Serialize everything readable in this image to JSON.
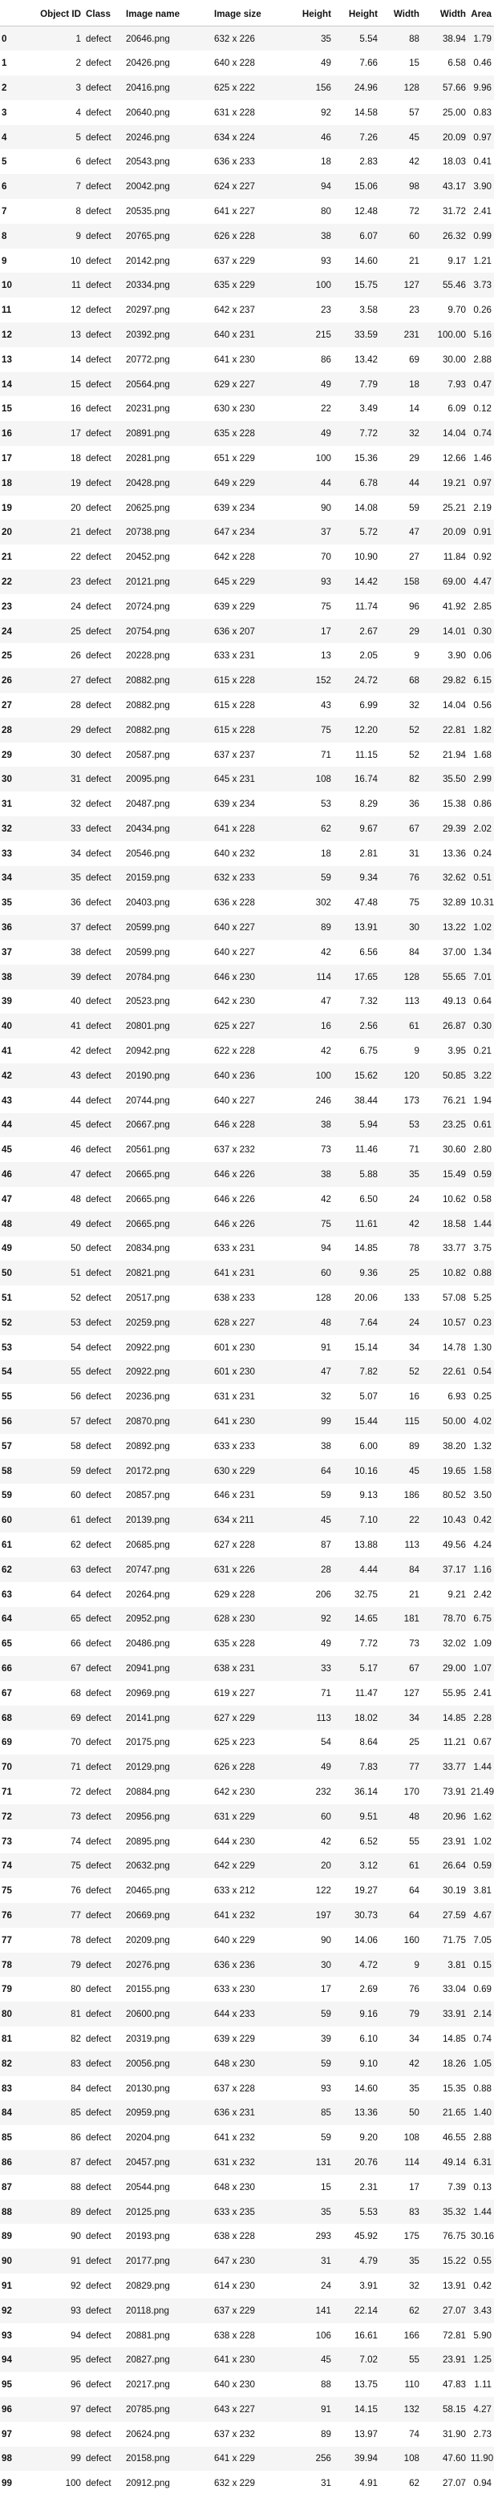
{
  "table": {
    "columns": [
      "",
      "Object ID",
      "Class",
      "Image name",
      "Image size",
      "Height",
      "Height",
      "Width",
      "Width",
      "Area"
    ],
    "rows": [
      [
        "0",
        "1",
        "defect",
        "20646.png",
        "632 x 226",
        "35",
        "5.54",
        "88",
        "38.94",
        "1.79"
      ],
      [
        "1",
        "2",
        "defect",
        "20426.png",
        "640 x 228",
        "49",
        "7.66",
        "15",
        "6.58",
        "0.46"
      ],
      [
        "2",
        "3",
        "defect",
        "20416.png",
        "625 x 222",
        "156",
        "24.96",
        "128",
        "57.66",
        "9.96"
      ],
      [
        "3",
        "4",
        "defect",
        "20640.png",
        "631 x 228",
        "92",
        "14.58",
        "57",
        "25.00",
        "0.83"
      ],
      [
        "4",
        "5",
        "defect",
        "20246.png",
        "634 x 224",
        "46",
        "7.26",
        "45",
        "20.09",
        "0.97"
      ],
      [
        "5",
        "6",
        "defect",
        "20543.png",
        "636 x 233",
        "18",
        "2.83",
        "42",
        "18.03",
        "0.41"
      ],
      [
        "6",
        "7",
        "defect",
        "20042.png",
        "624 x 227",
        "94",
        "15.06",
        "98",
        "43.17",
        "3.90"
      ],
      [
        "7",
        "8",
        "defect",
        "20535.png",
        "641 x 227",
        "80",
        "12.48",
        "72",
        "31.72",
        "2.41"
      ],
      [
        "8",
        "9",
        "defect",
        "20765.png",
        "626 x 228",
        "38",
        "6.07",
        "60",
        "26.32",
        "0.99"
      ],
      [
        "9",
        "10",
        "defect",
        "20142.png",
        "637 x 229",
        "93",
        "14.60",
        "21",
        "9.17",
        "1.21"
      ],
      [
        "10",
        "11",
        "defect",
        "20334.png",
        "635 x 229",
        "100",
        "15.75",
        "127",
        "55.46",
        "3.73"
      ],
      [
        "11",
        "12",
        "defect",
        "20297.png",
        "642 x 237",
        "23",
        "3.58",
        "23",
        "9.70",
        "0.26"
      ],
      [
        "12",
        "13",
        "defect",
        "20392.png",
        "640 x 231",
        "215",
        "33.59",
        "231",
        "100.00",
        "5.16"
      ],
      [
        "13",
        "14",
        "defect",
        "20772.png",
        "641 x 230",
        "86",
        "13.42",
        "69",
        "30.00",
        "2.88"
      ],
      [
        "14",
        "15",
        "defect",
        "20564.png",
        "629 x 227",
        "49",
        "7.79",
        "18",
        "7.93",
        "0.47"
      ],
      [
        "15",
        "16",
        "defect",
        "20231.png",
        "630 x 230",
        "22",
        "3.49",
        "14",
        "6.09",
        "0.12"
      ],
      [
        "16",
        "17",
        "defect",
        "20891.png",
        "635 x 228",
        "49",
        "7.72",
        "32",
        "14.04",
        "0.74"
      ],
      [
        "17",
        "18",
        "defect",
        "20281.png",
        "651 x 229",
        "100",
        "15.36",
        "29",
        "12.66",
        "1.46"
      ],
      [
        "18",
        "19",
        "defect",
        "20428.png",
        "649 x 229",
        "44",
        "6.78",
        "44",
        "19.21",
        "0.97"
      ],
      [
        "19",
        "20",
        "defect",
        "20625.png",
        "639 x 234",
        "90",
        "14.08",
        "59",
        "25.21",
        "2.19"
      ],
      [
        "20",
        "21",
        "defect",
        "20738.png",
        "647 x 234",
        "37",
        "5.72",
        "47",
        "20.09",
        "0.91"
      ],
      [
        "21",
        "22",
        "defect",
        "20452.png",
        "642 x 228",
        "70",
        "10.90",
        "27",
        "11.84",
        "0.92"
      ],
      [
        "22",
        "23",
        "defect",
        "20121.png",
        "645 x 229",
        "93",
        "14.42",
        "158",
        "69.00",
        "4.47"
      ],
      [
        "23",
        "24",
        "defect",
        "20724.png",
        "639 x 229",
        "75",
        "11.74",
        "96",
        "41.92",
        "2.85"
      ],
      [
        "24",
        "25",
        "defect",
        "20754.png",
        "636 x 207",
        "17",
        "2.67",
        "29",
        "14.01",
        "0.30"
      ],
      [
        "25",
        "26",
        "defect",
        "20228.png",
        "633 x 231",
        "13",
        "2.05",
        "9",
        "3.90",
        "0.06"
      ],
      [
        "26",
        "27",
        "defect",
        "20882.png",
        "615 x 228",
        "152",
        "24.72",
        "68",
        "29.82",
        "6.15"
      ],
      [
        "27",
        "28",
        "defect",
        "20882.png",
        "615 x 228",
        "43",
        "6.99",
        "32",
        "14.04",
        "0.56"
      ],
      [
        "28",
        "29",
        "defect",
        "20882.png",
        "615 x 228",
        "75",
        "12.20",
        "52",
        "22.81",
        "1.82"
      ],
      [
        "29",
        "30",
        "defect",
        "20587.png",
        "637 x 237",
        "71",
        "11.15",
        "52",
        "21.94",
        "1.68"
      ],
      [
        "30",
        "31",
        "defect",
        "20095.png",
        "645 x 231",
        "108",
        "16.74",
        "82",
        "35.50",
        "2.99"
      ],
      [
        "31",
        "32",
        "defect",
        "20487.png",
        "639 x 234",
        "53",
        "8.29",
        "36",
        "15.38",
        "0.86"
      ],
      [
        "32",
        "33",
        "defect",
        "20434.png",
        "641 x 228",
        "62",
        "9.67",
        "67",
        "29.39",
        "2.02"
      ],
      [
        "33",
        "34",
        "defect",
        "20546.png",
        "640 x 232",
        "18",
        "2.81",
        "31",
        "13.36",
        "0.24"
      ],
      [
        "34",
        "35",
        "defect",
        "20159.png",
        "632 x 233",
        "59",
        "9.34",
        "76",
        "32.62",
        "0.51"
      ],
      [
        "35",
        "36",
        "defect",
        "20403.png",
        "636 x 228",
        "302",
        "47.48",
        "75",
        "32.89",
        "10.31"
      ],
      [
        "36",
        "37",
        "defect",
        "20599.png",
        "640 x 227",
        "89",
        "13.91",
        "30",
        "13.22",
        "1.02"
      ],
      [
        "37",
        "38",
        "defect",
        "20599.png",
        "640 x 227",
        "42",
        "6.56",
        "84",
        "37.00",
        "1.34"
      ],
      [
        "38",
        "39",
        "defect",
        "20784.png",
        "646 x 230",
        "114",
        "17.65",
        "128",
        "55.65",
        "7.01"
      ],
      [
        "39",
        "40",
        "defect",
        "20523.png",
        "642 x 230",
        "47",
        "7.32",
        "113",
        "49.13",
        "0.64"
      ],
      [
        "40",
        "41",
        "defect",
        "20801.png",
        "625 x 227",
        "16",
        "2.56",
        "61",
        "26.87",
        "0.30"
      ],
      [
        "41",
        "42",
        "defect",
        "20942.png",
        "622 x 228",
        "42",
        "6.75",
        "9",
        "3.95",
        "0.21"
      ],
      [
        "42",
        "43",
        "defect",
        "20190.png",
        "640 x 236",
        "100",
        "15.62",
        "120",
        "50.85",
        "3.22"
      ],
      [
        "43",
        "44",
        "defect",
        "20744.png",
        "640 x 227",
        "246",
        "38.44",
        "173",
        "76.21",
        "1.94"
      ],
      [
        "44",
        "45",
        "defect",
        "20667.png",
        "646 x 228",
        "38",
        "5.94",
        "53",
        "23.25",
        "0.61"
      ],
      [
        "45",
        "46",
        "defect",
        "20561.png",
        "637 x 232",
        "73",
        "11.46",
        "71",
        "30.60",
        "2.80"
      ],
      [
        "46",
        "47",
        "defect",
        "20665.png",
        "646 x 226",
        "38",
        "5.88",
        "35",
        "15.49",
        "0.59"
      ],
      [
        "47",
        "48",
        "defect",
        "20665.png",
        "646 x 226",
        "42",
        "6.50",
        "24",
        "10.62",
        "0.58"
      ],
      [
        "48",
        "49",
        "defect",
        "20665.png",
        "646 x 226",
        "75",
        "11.61",
        "42",
        "18.58",
        "1.44"
      ],
      [
        "49",
        "50",
        "defect",
        "20834.png",
        "633 x 231",
        "94",
        "14.85",
        "78",
        "33.77",
        "3.75"
      ],
      [
        "50",
        "51",
        "defect",
        "20821.png",
        "641 x 231",
        "60",
        "9.36",
        "25",
        "10.82",
        "0.88"
      ],
      [
        "51",
        "52",
        "defect",
        "20517.png",
        "638 x 233",
        "128",
        "20.06",
        "133",
        "57.08",
        "5.25"
      ],
      [
        "52",
        "53",
        "defect",
        "20259.png",
        "628 x 227",
        "48",
        "7.64",
        "24",
        "10.57",
        "0.23"
      ],
      [
        "53",
        "54",
        "defect",
        "20922.png",
        "601 x 230",
        "91",
        "15.14",
        "34",
        "14.78",
        "1.30"
      ],
      [
        "54",
        "55",
        "defect",
        "20922.png",
        "601 x 230",
        "47",
        "7.82",
        "52",
        "22.61",
        "0.54"
      ],
      [
        "55",
        "56",
        "defect",
        "20236.png",
        "631 x 231",
        "32",
        "5.07",
        "16",
        "6.93",
        "0.25"
      ],
      [
        "56",
        "57",
        "defect",
        "20870.png",
        "641 x 230",
        "99",
        "15.44",
        "115",
        "50.00",
        "4.02"
      ],
      [
        "57",
        "58",
        "defect",
        "20892.png",
        "633 x 233",
        "38",
        "6.00",
        "89",
        "38.20",
        "1.32"
      ],
      [
        "58",
        "59",
        "defect",
        "20172.png",
        "630 x 229",
        "64",
        "10.16",
        "45",
        "19.65",
        "1.58"
      ],
      [
        "59",
        "60",
        "defect",
        "20857.png",
        "646 x 231",
        "59",
        "9.13",
        "186",
        "80.52",
        "3.50"
      ],
      [
        "60",
        "61",
        "defect",
        "20139.png",
        "634 x 211",
        "45",
        "7.10",
        "22",
        "10.43",
        "0.42"
      ],
      [
        "61",
        "62",
        "defect",
        "20685.png",
        "627 x 228",
        "87",
        "13.88",
        "113",
        "49.56",
        "4.24"
      ],
      [
        "62",
        "63",
        "defect",
        "20747.png",
        "631 x 226",
        "28",
        "4.44",
        "84",
        "37.17",
        "1.16"
      ],
      [
        "63",
        "64",
        "defect",
        "20264.png",
        "629 x 228",
        "206",
        "32.75",
        "21",
        "9.21",
        "2.42"
      ],
      [
        "64",
        "65",
        "defect",
        "20952.png",
        "628 x 230",
        "92",
        "14.65",
        "181",
        "78.70",
        "6.75"
      ],
      [
        "65",
        "66",
        "defect",
        "20486.png",
        "635 x 228",
        "49",
        "7.72",
        "73",
        "32.02",
        "1.09"
      ],
      [
        "66",
        "67",
        "defect",
        "20941.png",
        "638 x 231",
        "33",
        "5.17",
        "67",
        "29.00",
        "1.07"
      ],
      [
        "67",
        "68",
        "defect",
        "20969.png",
        "619 x 227",
        "71",
        "11.47",
        "127",
        "55.95",
        "2.41"
      ],
      [
        "68",
        "69",
        "defect",
        "20141.png",
        "627 x 229",
        "113",
        "18.02",
        "34",
        "14.85",
        "2.28"
      ],
      [
        "69",
        "70",
        "defect",
        "20175.png",
        "625 x 223",
        "54",
        "8.64",
        "25",
        "11.21",
        "0.67"
      ],
      [
        "70",
        "71",
        "defect",
        "20129.png",
        "626 x 228",
        "49",
        "7.83",
        "77",
        "33.77",
        "1.44"
      ],
      [
        "71",
        "72",
        "defect",
        "20884.png",
        "642 x 230",
        "232",
        "36.14",
        "170",
        "73.91",
        "21.49"
      ],
      [
        "72",
        "73",
        "defect",
        "20956.png",
        "631 x 229",
        "60",
        "9.51",
        "48",
        "20.96",
        "1.62"
      ],
      [
        "73",
        "74",
        "defect",
        "20895.png",
        "644 x 230",
        "42",
        "6.52",
        "55",
        "23.91",
        "1.02"
      ],
      [
        "74",
        "75",
        "defect",
        "20632.png",
        "642 x 229",
        "20",
        "3.12",
        "61",
        "26.64",
        "0.59"
      ],
      [
        "75",
        "76",
        "defect",
        "20465.png",
        "633 x 212",
        "122",
        "19.27",
        "64",
        "30.19",
        "3.81"
      ],
      [
        "76",
        "77",
        "defect",
        "20669.png",
        "641 x 232",
        "197",
        "30.73",
        "64",
        "27.59",
        "4.67"
      ],
      [
        "77",
        "78",
        "defect",
        "20209.png",
        "640 x 229",
        "90",
        "14.06",
        "160",
        "71.75",
        "7.05"
      ],
      [
        "78",
        "79",
        "defect",
        "20276.png",
        "636 x 236",
        "30",
        "4.72",
        "9",
        "3.81",
        "0.15"
      ],
      [
        "79",
        "80",
        "defect",
        "20155.png",
        "633 x 230",
        "17",
        "2.69",
        "76",
        "33.04",
        "0.69"
      ],
      [
        "80",
        "81",
        "defect",
        "20600.png",
        "644 x 233",
        "59",
        "9.16",
        "79",
        "33.91",
        "2.14"
      ],
      [
        "81",
        "82",
        "defect",
        "20319.png",
        "639 x 229",
        "39",
        "6.10",
        "34",
        "14.85",
        "0.74"
      ],
      [
        "82",
        "83",
        "defect",
        "20056.png",
        "648 x 230",
        "59",
        "9.10",
        "42",
        "18.26",
        "1.05"
      ],
      [
        "83",
        "84",
        "defect",
        "20130.png",
        "637 x 228",
        "93",
        "14.60",
        "35",
        "15.35",
        "0.88"
      ],
      [
        "84",
        "85",
        "defect",
        "20959.png",
        "636 x 231",
        "85",
        "13.36",
        "50",
        "21.65",
        "1.40"
      ],
      [
        "85",
        "86",
        "defect",
        "20204.png",
        "641 x 232",
        "59",
        "9.20",
        "108",
        "46.55",
        "2.88"
      ],
      [
        "86",
        "87",
        "defect",
        "20457.png",
        "631 x 232",
        "131",
        "20.76",
        "114",
        "49.14",
        "6.31"
      ],
      [
        "87",
        "88",
        "defect",
        "20544.png",
        "648 x 230",
        "15",
        "2.31",
        "17",
        "7.39",
        "0.13"
      ],
      [
        "88",
        "89",
        "defect",
        "20125.png",
        "633 x 235",
        "35",
        "5.53",
        "83",
        "35.32",
        "1.44"
      ],
      [
        "89",
        "90",
        "defect",
        "20193.png",
        "638 x 228",
        "293",
        "45.92",
        "175",
        "76.75",
        "30.16"
      ],
      [
        "90",
        "91",
        "defect",
        "20177.png",
        "647 x 230",
        "31",
        "4.79",
        "35",
        "15.22",
        "0.55"
      ],
      [
        "91",
        "92",
        "defect",
        "20829.png",
        "614 x 230",
        "24",
        "3.91",
        "32",
        "13.91",
        "0.42"
      ],
      [
        "92",
        "93",
        "defect",
        "20118.png",
        "637 x 229",
        "141",
        "22.14",
        "62",
        "27.07",
        "3.43"
      ],
      [
        "93",
        "94",
        "defect",
        "20881.png",
        "638 x 228",
        "106",
        "16.61",
        "166",
        "72.81",
        "5.90"
      ],
      [
        "94",
        "95",
        "defect",
        "20827.png",
        "641 x 230",
        "45",
        "7.02",
        "55",
        "23.91",
        "1.25"
      ],
      [
        "95",
        "96",
        "defect",
        "20217.png",
        "640 x 230",
        "88",
        "13.75",
        "110",
        "47.83",
        "1.11"
      ],
      [
        "96",
        "97",
        "defect",
        "20785.png",
        "643 x 227",
        "91",
        "14.15",
        "132",
        "58.15",
        "4.27"
      ],
      [
        "97",
        "98",
        "defect",
        "20624.png",
        "637 x 232",
        "89",
        "13.97",
        "74",
        "31.90",
        "2.73"
      ],
      [
        "98",
        "99",
        "defect",
        "20158.png",
        "641 x 229",
        "256",
        "39.94",
        "108",
        "47.60",
        "11.90"
      ],
      [
        "99",
        "100",
        "defect",
        "20912.png",
        "632 x 229",
        "31",
        "4.91",
        "62",
        "27.07",
        "0.94"
      ]
    ]
  }
}
